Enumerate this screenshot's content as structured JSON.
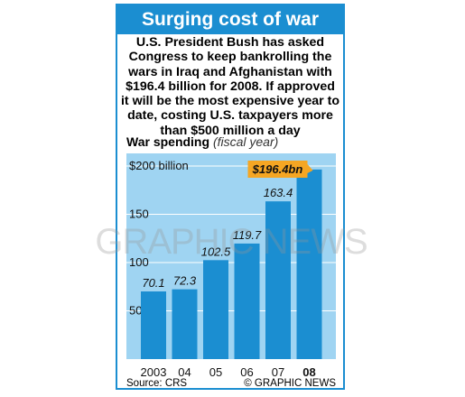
{
  "header": {
    "title": "Surging cost of war",
    "intro": "U.S. President Bush has asked Congress to keep bankrolling the wars in Iraq and Afghanistan with $196.4 billion for 2008. If approved it will be the most expensive year to date, costing U.S. taxpayers more than $500 million a day"
  },
  "chart_heading": "War spending",
  "chart_subheading": "(fiscal year)",
  "footer": {
    "source": "Source: CRS",
    "credit": "© GRAPHIC NEWS"
  },
  "watermark": "GRAPHIC NEWS",
  "colors": {
    "accent": "#1b8ed1",
    "bar": "#1b8ed1",
    "chart_bg": "#9fd4f2",
    "callout": "#f5a623"
  },
  "chart_data": {
    "type": "bar",
    "title": "War spending",
    "subtitle": "(fiscal year)",
    "xlabel": "",
    "ylabel": "",
    "categories": [
      "2003",
      "04",
      "05",
      "06",
      "07",
      "08"
    ],
    "values": [
      70.1,
      72.3,
      102.5,
      119.7,
      163.4,
      196.4
    ],
    "data_labels": [
      "70.1",
      "72.3",
      "102.5",
      "119.7",
      "163.4",
      "$196.4bn"
    ],
    "highlight_index": 5,
    "y_ticks": [
      50,
      100,
      150,
      200
    ],
    "y_tick_labels": [
      "50",
      "100",
      "150",
      "$200 billion"
    ],
    "ylim": [
      0,
      200
    ],
    "grid": true
  }
}
